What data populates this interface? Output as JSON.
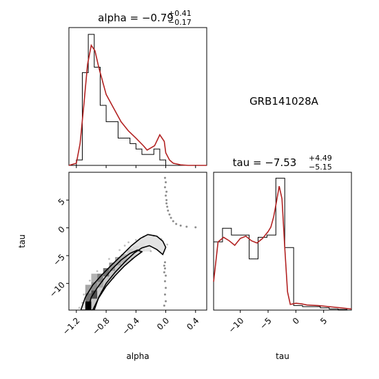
{
  "chart_data": {
    "type": "corner",
    "object_name": "GRB141028A",
    "colors": {
      "kde": "#b22222",
      "hist": "#000000",
      "frame": "#000000",
      "scatter": "#000000"
    },
    "params": [
      {
        "name": "alpha",
        "median": -0.79,
        "plus": 0.41,
        "minus": 0.17,
        "title_prefix": "alpha = ",
        "title_value": "−0.79",
        "title_plus": "+0.41",
        "title_minus": "−0.17",
        "range": [
          -1.3,
          0.55
        ],
        "ticks": [
          -1.2,
          -0.8,
          -0.4,
          0.0,
          0.4
        ],
        "tick_labels": [
          "−1.2",
          "−0.8",
          "−0.4",
          "0.0",
          "0.4"
        ]
      },
      {
        "name": "tau",
        "median": -7.53,
        "plus": 4.49,
        "minus": 5.15,
        "title_prefix": "tau = ",
        "title_value": "−7.53",
        "title_plus": "+4.49",
        "title_minus": "−5.15",
        "range": [
          -14.8,
          10.0
        ],
        "ticks": [
          -10,
          -5,
          0,
          5
        ],
        "tick_labels": [
          "−10",
          "−5",
          "0",
          "5"
        ]
      }
    ],
    "alpha_hist": {
      "edges": [
        -1.2,
        -1.12,
        -1.04,
        -0.96,
        -0.88,
        -0.8,
        -0.72,
        -0.64,
        -0.56,
        -0.48,
        -0.4,
        -0.32,
        -0.24,
        -0.16,
        -0.08,
        0.0,
        0.08
      ],
      "counts": [
        1,
        17,
        24,
        18,
        11,
        8,
        8,
        5,
        5,
        4,
        3,
        2,
        2,
        3,
        1,
        0
      ],
      "kde_x": [
        -1.3,
        -1.2,
        -1.15,
        -1.1,
        -1.05,
        -1.0,
        -0.95,
        -0.9,
        -0.85,
        -0.8,
        -0.7,
        -0.6,
        -0.5,
        -0.4,
        -0.3,
        -0.25,
        -0.15,
        -0.08,
        -0.02,
        0.0,
        0.05,
        0.1,
        0.2,
        0.3,
        0.4,
        0.55
      ],
      "kde_y": [
        0,
        0.4,
        4,
        11,
        18.5,
        22,
        21,
        18,
        15.5,
        13,
        10.5,
        8,
        6.3,
        5,
        3.6,
        2.8,
        3.6,
        5.6,
        4.4,
        2.3,
        1.0,
        0.4,
        0.1,
        0,
        0,
        0
      ],
      "ymax": 25
    },
    "tau_hist": {
      "edges": [
        -14.8,
        -13.2,
        -11.6,
        -10.0,
        -8.4,
        -6.8,
        -5.2,
        -3.6,
        -2.0,
        -0.4,
        1.2,
        2.8,
        4.4,
        6.0,
        7.6,
        9.2,
        10.0
      ],
      "counts": [
        6,
        7.2,
        6.6,
        6.6,
        4.5,
        6.4,
        6.6,
        11.6,
        5.5,
        0.4,
        0.3,
        0.3,
        0.2,
        0.1,
        0.05,
        0
      ],
      "kde_x": [
        -14.8,
        -14.0,
        -13.0,
        -12.0,
        -11.0,
        -10.0,
        -9.0,
        -8.0,
        -7.0,
        -6.0,
        -5.0,
        -4.5,
        -4.0,
        -3.5,
        -3.0,
        -2.5,
        -2.0,
        -1.5,
        -1.0,
        -0.5,
        0.0,
        1.0,
        2.0,
        4.0,
        6.0,
        8.0,
        10.0
      ],
      "kde_y": [
        2.5,
        6.0,
        6.4,
        6.1,
        5.7,
        6.3,
        6.5,
        6.1,
        5.9,
        6.3,
        6.9,
        7.3,
        8.2,
        9.5,
        10.9,
        9.8,
        5.5,
        1.6,
        0.5,
        0.55,
        0.6,
        0.55,
        0.45,
        0.4,
        0.3,
        0.2,
        0.1
      ],
      "ymax": 12
    },
    "joint_2d": {
      "hist_cells": [
        {
          "alpha": -1.04,
          "tau": -14.0,
          "w": 1.0
        },
        {
          "alpha": -1.04,
          "tau": -12.5,
          "w": 0.55
        },
        {
          "alpha": -0.96,
          "tau": -12.0,
          "w": 0.7
        },
        {
          "alpha": -1.04,
          "tau": -11.0,
          "w": 0.35
        },
        {
          "alpha": -0.96,
          "tau": -10.5,
          "w": 0.45
        },
        {
          "alpha": -0.88,
          "tau": -10.0,
          "w": 0.35
        },
        {
          "alpha": -0.88,
          "tau": -9.0,
          "w": 0.5
        },
        {
          "alpha": -0.96,
          "tau": -9.0,
          "w": 0.3
        },
        {
          "alpha": -0.8,
          "tau": -8.0,
          "w": 0.55
        },
        {
          "alpha": -0.72,
          "tau": -7.0,
          "w": 0.4
        },
        {
          "alpha": -0.64,
          "tau": -6.0,
          "w": 0.35
        },
        {
          "alpha": -0.56,
          "tau": -5.5,
          "w": 0.3
        },
        {
          "alpha": -0.48,
          "tau": -4.5,
          "w": 0.2
        },
        {
          "alpha": -0.4,
          "tau": -4.0,
          "w": 0.15
        },
        {
          "alpha": -0.32,
          "tau": -3.5,
          "w": 0.12
        },
        {
          "alpha": -0.24,
          "tau": -3.5,
          "w": 0.1
        }
      ],
      "contour_outer": [
        [
          -1.14,
          -14.8
        ],
        [
          -1.08,
          -12.5
        ],
        [
          -0.98,
          -10.3
        ],
        [
          -0.86,
          -8.5
        ],
        [
          -0.72,
          -6.6
        ],
        [
          -0.58,
          -4.8
        ],
        [
          -0.46,
          -3.2
        ],
        [
          -0.34,
          -1.9
        ],
        [
          -0.24,
          -1.2
        ],
        [
          -0.12,
          -1.5
        ],
        [
          -0.04,
          -2.4
        ],
        [
          0.0,
          -3.5
        ],
        [
          -0.04,
          -4.8
        ],
        [
          -0.12,
          -3.9
        ],
        [
          -0.22,
          -3.2
        ],
        [
          -0.32,
          -3.6
        ],
        [
          -0.42,
          -4.5
        ],
        [
          -0.54,
          -6.0
        ],
        [
          -0.68,
          -8.0
        ],
        [
          -0.8,
          -10.0
        ],
        [
          -0.9,
          -12.5
        ],
        [
          -0.96,
          -14.8
        ]
      ],
      "contour_inner": [
        [
          -1.05,
          -14.8
        ],
        [
          -1.0,
          -12.5
        ],
        [
          -0.92,
          -10.8
        ],
        [
          -0.82,
          -9.0
        ],
        [
          -0.72,
          -7.4
        ],
        [
          -0.6,
          -5.8
        ],
        [
          -0.48,
          -4.6
        ],
        [
          -0.38,
          -4.0
        ],
        [
          -0.32,
          -4.3
        ],
        [
          -0.42,
          -5.3
        ],
        [
          -0.55,
          -6.8
        ],
        [
          -0.68,
          -8.6
        ],
        [
          -0.8,
          -10.5
        ],
        [
          -0.9,
          -12.6
        ],
        [
          -0.98,
          -14.8
        ]
      ],
      "tail_points": [
        [
          -0.01,
          9.0
        ],
        [
          0.0,
          8.2
        ],
        [
          -0.01,
          7.3
        ],
        [
          0.01,
          6.5
        ],
        [
          0.0,
          5.8
        ],
        [
          0.01,
          5.0
        ],
        [
          0.01,
          4.4
        ],
        [
          0.02,
          3.8
        ],
        [
          0.03,
          3.1
        ],
        [
          0.05,
          2.4
        ],
        [
          0.07,
          1.8
        ],
        [
          0.1,
          1.2
        ],
        [
          0.14,
          0.7
        ],
        [
          0.2,
          0.4
        ],
        [
          0.28,
          0.2
        ],
        [
          0.4,
          0.1
        ],
        [
          -0.01,
          -6.2
        ],
        [
          -0.01,
          -7.3
        ],
        [
          0.0,
          -8.6
        ],
        [
          -0.01,
          -9.6
        ],
        [
          0.0,
          -10.8
        ],
        [
          -0.01,
          -12.0
        ],
        [
          0.0,
          -13.2
        ],
        [
          -0.02,
          -14.0
        ],
        [
          -0.02,
          -8.0
        ],
        [
          -0.02,
          -6.8
        ]
      ],
      "scatter_points": [
        [
          -1.1,
          -12.0
        ],
        [
          -1.02,
          -9.5
        ],
        [
          -0.92,
          -7.8
        ],
        [
          -0.76,
          -5.6
        ],
        [
          -0.62,
          -4.0
        ],
        [
          -0.5,
          -2.6
        ],
        [
          -0.4,
          -2.2
        ],
        [
          -0.3,
          -1.6
        ],
        [
          -0.16,
          -1.4
        ],
        [
          -0.06,
          -2.0
        ],
        [
          0.02,
          -3.0
        ],
        [
          -0.2,
          -4.2
        ],
        [
          -1.12,
          -13.5
        ],
        [
          -0.86,
          -11.5
        ],
        [
          -0.7,
          -9.0
        ],
        [
          -1.16,
          -14.4
        ],
        [
          -0.55,
          -3.2
        ],
        [
          -0.45,
          -5.6
        ]
      ]
    }
  }
}
